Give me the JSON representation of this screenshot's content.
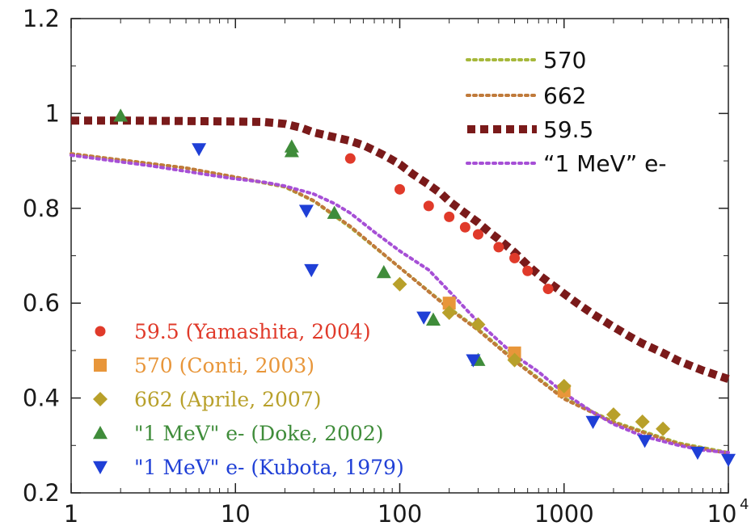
{
  "chart_data": {
    "type": "scatter",
    "title": "",
    "xlabel": "",
    "ylabel": "",
    "x_scale": "log",
    "xlim": [
      1,
      10000
    ],
    "ylim": [
      0.2,
      1.2
    ],
    "x_tick_labels": [
      "1",
      "10",
      "100",
      "1000",
      "10"
    ],
    "x_tick_superscript": [
      "",
      "",
      "",
      "",
      "4"
    ],
    "y_tick_labels": [
      "0.2",
      "0.4",
      "0.6",
      "0.8",
      "1",
      "1.2"
    ],
    "grid": false,
    "curves": [
      {
        "legend_label": "570",
        "color": "#a6b83a",
        "dash": "dotted",
        "x": [
          1,
          5,
          10,
          20,
          30,
          50,
          100,
          200,
          300,
          500,
          1000,
          2000,
          3000,
          5000,
          10000
        ],
        "y": [
          0.915,
          0.885,
          0.865,
          0.845,
          0.815,
          0.76,
          0.675,
          0.59,
          0.545,
          0.48,
          0.4,
          0.35,
          0.33,
          0.305,
          0.285
        ]
      },
      {
        "legend_label": "662",
        "color": "#c07a3a",
        "dash": "dotted",
        "x": [
          1,
          5,
          10,
          20,
          30,
          50,
          100,
          200,
          300,
          500,
          1000,
          2000,
          3000,
          5000,
          10000
        ],
        "y": [
          0.915,
          0.885,
          0.866,
          0.846,
          0.816,
          0.762,
          0.675,
          0.588,
          0.543,
          0.478,
          0.398,
          0.348,
          0.328,
          0.303,
          0.283
        ]
      },
      {
        "legend_label": "59.5",
        "color": "#7a1a1a",
        "dash": "square",
        "x": [
          1,
          2,
          5,
          10,
          15,
          20,
          25,
          30,
          40,
          50,
          60,
          70,
          80,
          90,
          100,
          120,
          150,
          180,
          200,
          250,
          300,
          350,
          400,
          500,
          600,
          700,
          800,
          1000,
          1200,
          1500,
          2000,
          2500,
          3000,
          4000,
          5000,
          7000,
          10000
        ],
        "y": [
          0.985,
          0.985,
          0.984,
          0.983,
          0.982,
          0.978,
          0.97,
          0.96,
          0.95,
          0.942,
          0.933,
          0.922,
          0.912,
          0.902,
          0.893,
          0.872,
          0.85,
          0.83,
          0.815,
          0.79,
          0.77,
          0.75,
          0.735,
          0.707,
          0.68,
          0.66,
          0.645,
          0.62,
          0.6,
          0.577,
          0.55,
          0.53,
          0.515,
          0.495,
          0.478,
          0.458,
          0.44
        ]
      },
      {
        "legend_label": "“1 MeV” e-",
        "color": "#a64fd6",
        "dash": "dotted",
        "x": [
          1,
          2,
          3,
          5,
          7,
          10,
          15,
          20,
          30,
          40,
          50,
          70,
          100,
          150,
          200,
          300,
          500,
          700,
          1000,
          1500,
          2000,
          3000,
          5000,
          7000,
          10000
        ],
        "y": [
          0.912,
          0.898,
          0.89,
          0.878,
          0.87,
          0.862,
          0.855,
          0.847,
          0.83,
          0.81,
          0.79,
          0.75,
          0.71,
          0.67,
          0.625,
          0.56,
          0.49,
          0.455,
          0.41,
          0.37,
          0.345,
          0.32,
          0.3,
          0.29,
          0.285
        ]
      }
    ],
    "datasets": [
      {
        "legend_label": "59.5 (Yamashita, 2004)",
        "color": "#e03a2a",
        "marker": "circle",
        "x": [
          50,
          100,
          150,
          200,
          250,
          300,
          400,
          500,
          600,
          800
        ],
        "y": [
          0.905,
          0.84,
          0.805,
          0.782,
          0.76,
          0.745,
          0.718,
          0.695,
          0.668,
          0.63
        ]
      },
      {
        "legend_label": "570 (Conti, 2003)",
        "color": "#e8963a",
        "marker": "square",
        "x": [
          200,
          500,
          1000
        ],
        "y": [
          0.6,
          0.495,
          0.415
        ]
      },
      {
        "legend_label": "662 (Aprile, 2007)",
        "color": "#b8a02a",
        "marker": "diamond",
        "x": [
          100,
          200,
          300,
          500,
          1000,
          2000,
          3000,
          4000
        ],
        "y": [
          0.64,
          0.58,
          0.555,
          0.48,
          0.425,
          0.365,
          0.35,
          0.335
        ]
      },
      {
        "legend_label": "\"1 MeV\" e- (Doke, 2002)",
        "color": "#3f8c3a",
        "marker": "triangle-up",
        "x": [
          2,
          22,
          22,
          40,
          80,
          160,
          300
        ],
        "y": [
          0.995,
          0.93,
          0.92,
          0.79,
          0.665,
          0.565,
          0.48
        ]
      },
      {
        "legend_label": "\"1 MeV\" e- (Kubota, 1979)",
        "color": "#1f3fd6",
        "marker": "triangle-down",
        "x": [
          6,
          27,
          29,
          140,
          280,
          1500,
          3100,
          6500,
          10000
        ],
        "y": [
          0.925,
          0.795,
          0.67,
          0.57,
          0.48,
          0.35,
          0.31,
          0.285,
          0.27
        ]
      }
    ]
  }
}
